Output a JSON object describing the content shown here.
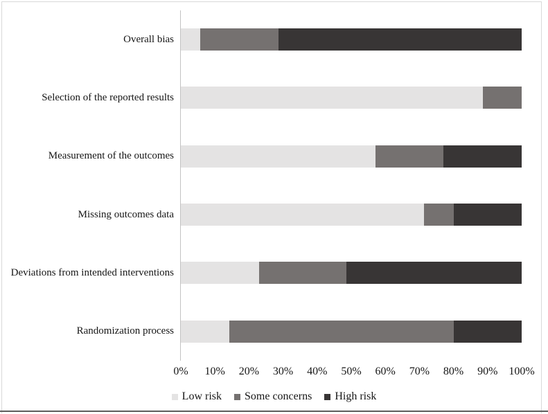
{
  "chart_data": {
    "type": "bar",
    "orientation": "horizontal",
    "stacked": true,
    "title": "",
    "xlabel": "",
    "ylabel": "",
    "xlim": [
      0,
      100
    ],
    "grid": false,
    "legend_position": "bottom-center",
    "categories_top_to_bottom": [
      "Overall bias",
      "Selection of the reported results",
      "Measurement of the outcomes",
      "Missing outcomes data",
      "Deviations from intended interventions",
      "Randomization process"
    ],
    "series": [
      {
        "name": "Low risk",
        "color": "#e4e3e3",
        "values": [
          5.7,
          88.6,
          57.1,
          71.4,
          22.9,
          14.3
        ]
      },
      {
        "name": "Some concerns",
        "color": "#757170",
        "values": [
          22.9,
          11.4,
          20.0,
          8.6,
          25.7,
          65.7
        ]
      },
      {
        "name": "High risk",
        "color": "#383535",
        "values": [
          71.4,
          0.0,
          22.9,
          20.0,
          51.4,
          20.0
        ]
      }
    ],
    "x_tick_labels": [
      "0%",
      "10%",
      "20%",
      "30%",
      "40%",
      "50%",
      "60%",
      "70%",
      "80%",
      "90%",
      "100%"
    ]
  },
  "colors": {
    "low_risk": "#e4e3e3",
    "some_concerns": "#757170",
    "high_risk": "#383535",
    "axis_line": "#c2c2c2",
    "page_border": "#d9d9d9",
    "bottom_rule": "#5c5c5c"
  }
}
